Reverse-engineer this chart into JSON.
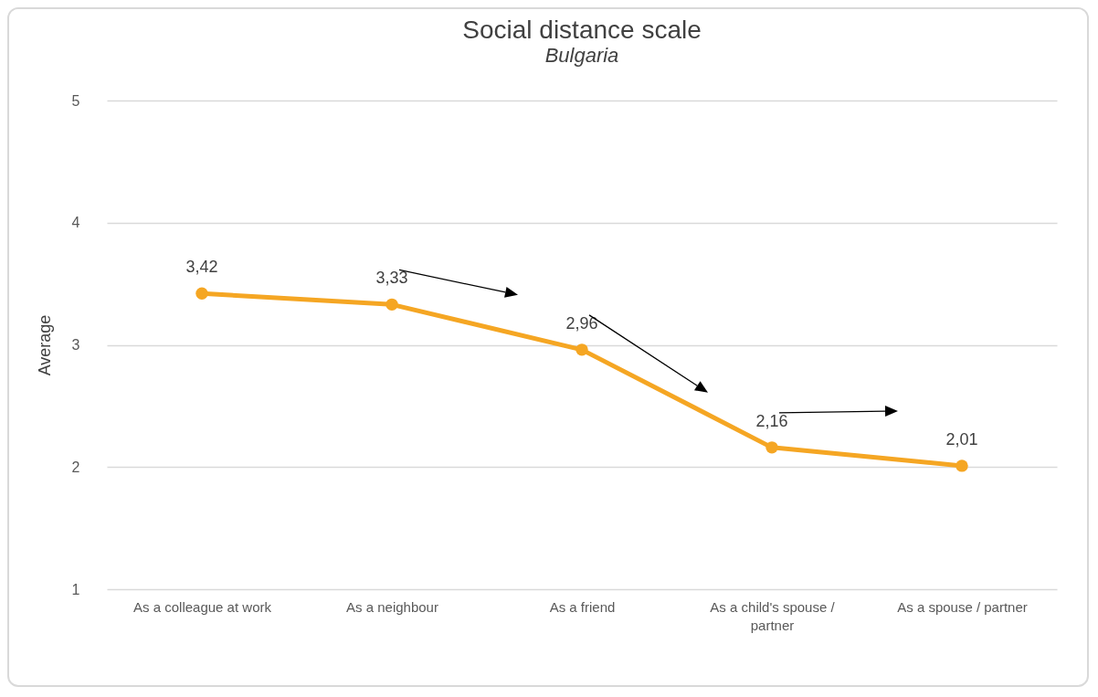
{
  "chart_data": {
    "type": "line",
    "title": "Social distance scale",
    "subtitle": "Bulgaria",
    "ylabel": "Average",
    "categories": [
      "As a colleague at work",
      "As a neighbour",
      "As a friend",
      "As a child's spouse / partner",
      "As a spouse / partner"
    ],
    "series": [
      {
        "color": "#f5a623",
        "values": [
          3.42,
          3.33,
          2.96,
          2.16,
          2.01
        ],
        "value_labels": [
          "3,42",
          "3,33",
          "2,96",
          "2,16",
          "2,01"
        ]
      }
    ],
    "ylim": [
      1,
      5
    ],
    "yticks": [
      1,
      2,
      3,
      4,
      5
    ],
    "grid": "y",
    "marker": "circle",
    "line_style": "solid",
    "legend": false
  }
}
